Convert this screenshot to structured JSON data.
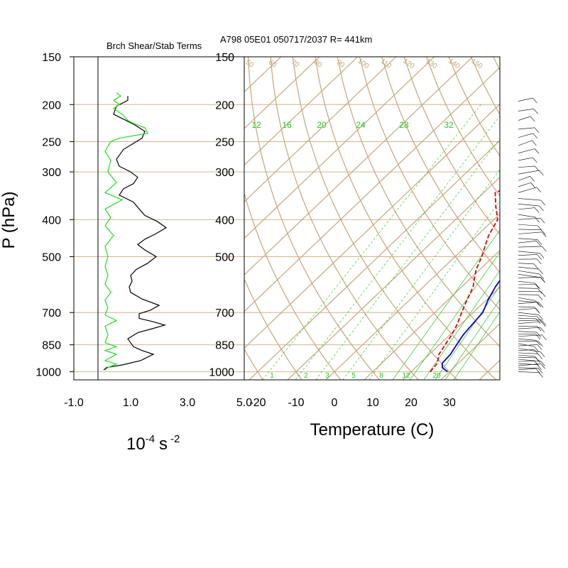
{
  "header": {
    "left_title": "Brch Shear/Stab Terms",
    "right_title": "A798 05E01 050717/2037 R= 441km"
  },
  "colors": {
    "grid": "#d2b48c",
    "skew_lines": "#c8a47a",
    "mixing_ratio": "#22cc22",
    "temperature": "#0000cc",
    "dewpoint": "#dd0000",
    "stab_term": "#000000",
    "shear_term": "#22dd22"
  },
  "chart_data": [
    {
      "type": "line",
      "name": "shear-stability-profile",
      "title": "Brch Shear/Stab Terms",
      "xlabel_base": "10",
      "xlabel_exp1": "-4",
      "xlabel_unit": "s",
      "xlabel_exp2": "-2",
      "ylabel": "P (hPa)",
      "xlim": [
        -1.0,
        5.0
      ],
      "ylim": [
        1050,
        150
      ],
      "y_scale": "log",
      "x_ticks": [
        "-1.0",
        "1.0",
        "3.0",
        "5.0"
      ],
      "x_tick_values": [
        -1.0,
        1.0,
        3.0,
        5.0
      ],
      "y_ticks": [
        "150",
        "200",
        "250",
        "300",
        "400",
        "500",
        "700",
        "850",
        "1000"
      ],
      "y_tick_values": [
        150,
        200,
        250,
        300,
        400,
        500,
        700,
        850,
        1000
      ],
      "series": [
        {
          "key": "stab",
          "color": "#000000",
          "points": [
            [
              0.05,
              990
            ],
            [
              0.15,
              975
            ],
            [
              0.7,
              960
            ],
            [
              1.35,
              935
            ],
            [
              1.8,
              900
            ],
            [
              1.4,
              880
            ],
            [
              1.1,
              860
            ],
            [
              0.9,
              820
            ],
            [
              1.25,
              790
            ],
            [
              1.8,
              770
            ],
            [
              2.2,
              755
            ],
            [
              1.8,
              740
            ],
            [
              1.3,
              725
            ],
            [
              1.3,
              705
            ],
            [
              1.7,
              690
            ],
            [
              2.0,
              670
            ],
            [
              1.4,
              645
            ],
            [
              1.0,
              620
            ],
            [
              0.95,
              600
            ],
            [
              1.05,
              580
            ],
            [
              1.0,
              560
            ],
            [
              1.2,
              540
            ],
            [
              1.6,
              520
            ],
            [
              1.9,
              500
            ],
            [
              1.5,
              480
            ],
            [
              1.25,
              465
            ],
            [
              1.5,
              450
            ],
            [
              1.9,
              435
            ],
            [
              2.25,
              420
            ],
            [
              1.95,
              405
            ],
            [
              1.5,
              390
            ],
            [
              1.3,
              375
            ],
            [
              1.1,
              360
            ],
            [
              0.6,
              345
            ],
            [
              0.75,
              332
            ],
            [
              1.1,
              322
            ],
            [
              1.25,
              310
            ],
            [
              1.0,
              300
            ],
            [
              0.6,
              290
            ],
            [
              0.5,
              278
            ],
            [
              0.75,
              262
            ],
            [
              1.4,
              245
            ],
            [
              1.5,
              235
            ],
            [
              1.1,
              225
            ],
            [
              0.4,
              212
            ],
            [
              0.5,
              202
            ],
            [
              0.9,
              195
            ],
            [
              0.9,
              190
            ]
          ]
        },
        {
          "key": "shear",
          "color": "#22dd22",
          "points": [
            [
              0.1,
              990
            ],
            [
              0.2,
              975
            ],
            [
              0.5,
              955
            ],
            [
              0.1,
              935
            ],
            [
              0.5,
              900
            ],
            [
              0.1,
              880
            ],
            [
              0.5,
              860
            ],
            [
              0.1,
              840
            ],
            [
              0.2,
              800
            ],
            [
              0.1,
              760
            ],
            [
              0.5,
              735
            ],
            [
              0.1,
              710
            ],
            [
              0.2,
              680
            ],
            [
              0.1,
              650
            ],
            [
              0.3,
              620
            ],
            [
              0.1,
              590
            ],
            [
              0.2,
              560
            ],
            [
              0.1,
              530
            ],
            [
              0.2,
              500
            ],
            [
              0.1,
              470
            ],
            [
              0.4,
              440
            ],
            [
              0.1,
              415
            ],
            [
              0.3,
              395
            ],
            [
              0.1,
              375
            ],
            [
              0.7,
              355
            ],
            [
              0.1,
              340
            ],
            [
              0.5,
              320
            ],
            [
              0.2,
              300
            ],
            [
              0.3,
              280
            ],
            [
              0.1,
              265
            ],
            [
              0.3,
              250
            ],
            [
              0.6,
              245
            ],
            [
              1.0,
              242
            ],
            [
              1.6,
              238
            ],
            [
              1.5,
              230
            ],
            [
              1.1,
              224
            ],
            [
              0.9,
              220
            ],
            [
              0.7,
              212
            ],
            [
              0.4,
              205
            ],
            [
              0.6,
              200
            ],
            [
              0.4,
              195
            ],
            [
              0.65,
              190
            ],
            [
              0.5,
              186
            ]
          ]
        }
      ]
    },
    {
      "type": "line",
      "name": "skew-t-log-p-diagram",
      "xlabel": "Temperature (C)",
      "xlim": [
        -23,
        42
      ],
      "ylim": [
        1050,
        150
      ],
      "y_scale": "log",
      "x_ticks": [
        "-20",
        "-10",
        "0",
        "10",
        "20",
        "30"
      ],
      "x_tick_values": [
        -20,
        -10,
        0,
        10,
        20,
        30
      ],
      "y_ticks": [
        "150",
        "200",
        "250",
        "300",
        "400",
        "500",
        "700",
        "850",
        "1000"
      ],
      "y_tick_values": [
        150,
        200,
        250,
        300,
        400,
        500,
        700,
        850,
        1000
      ],
      "mixing_ratio_labels_top": [
        "12",
        "16",
        "20",
        "24",
        "28",
        "32"
      ],
      "mixing_ratio_labels_bottom": [
        "1",
        "2",
        "3",
        "5",
        "8",
        "12",
        "20"
      ],
      "dry_adiabat_labels_top": [
        "50",
        "60",
        "70",
        "80",
        "90",
        "100",
        "110",
        "120",
        "130",
        "140",
        "150"
      ],
      "series": [
        {
          "key": "temperature",
          "color": "#0000cc",
          "points": [
            [
              29.5,
              1000
            ],
            [
              27.0,
              975
            ],
            [
              25.8,
              950
            ],
            [
              25.5,
              900
            ],
            [
              24.5,
              850
            ],
            [
              23.5,
              800
            ],
            [
              23.0,
              750
            ],
            [
              22.5,
              700
            ],
            [
              20.5,
              650
            ],
            [
              18.8,
              600
            ],
            [
              17.5,
              550
            ],
            [
              15.8,
              500
            ],
            [
              13.8,
              450
            ],
            [
              12.0,
              400
            ],
            [
              10.0,
              350
            ],
            [
              7.5,
              300
            ],
            [
              5.0,
              250
            ],
            [
              3.0,
              220
            ],
            [
              0.5,
              200
            ],
            [
              -1.0,
              187
            ]
          ]
        },
        {
          "key": "dewpoint",
          "color": "#dd0000",
          "dashed": true,
          "points": [
            [
              25.0,
              1000
            ],
            [
              24.5,
              950
            ],
            [
              22.5,
              900
            ],
            [
              21.5,
              850
            ],
            [
              20.5,
              800
            ],
            [
              19.0,
              750
            ],
            [
              17.0,
              700
            ],
            [
              15.0,
              650
            ],
            [
              13.0,
              600
            ],
            [
              11.0,
              570
            ],
            [
              9.0,
              540
            ],
            [
              7.0,
              500
            ],
            [
              5.0,
              470
            ],
            [
              3.0,
              440
            ],
            [
              1.0,
              400
            ],
            [
              -3.0,
              370
            ],
            [
              -7.0,
              340
            ],
            [
              -5.0,
              330
            ],
            [
              -1.0,
              320
            ],
            [
              3.5,
              305
            ],
            [
              3.0,
              290
            ],
            [
              0.5,
              275
            ],
            [
              -2.0,
              260
            ],
            [
              -1.5,
              240
            ],
            [
              -2.5,
              225
            ],
            [
              -5.0,
              210
            ]
          ]
        }
      ]
    }
  ]
}
